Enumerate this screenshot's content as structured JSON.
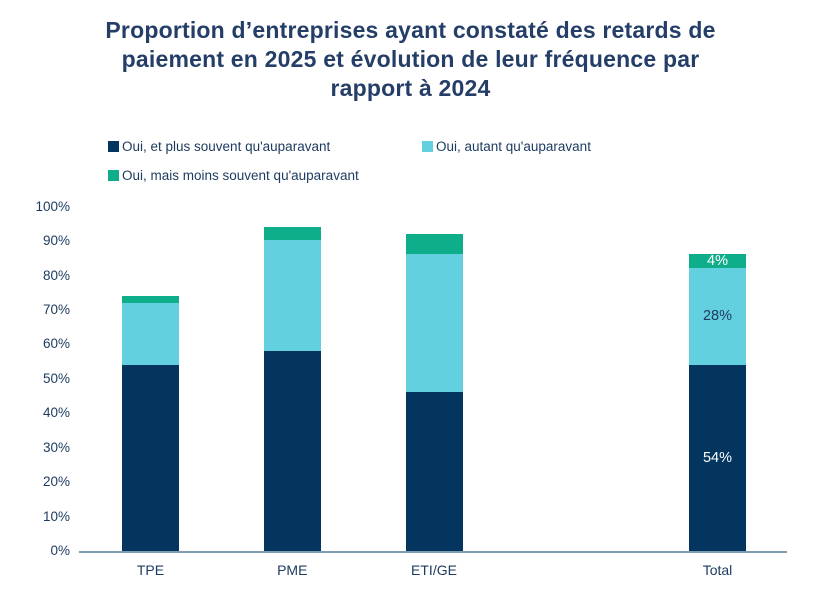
{
  "title": {
    "lines": [
      "Proportion d’entreprises ayant constaté des retards de",
      "paiement en 2025 et évolution de leur fréquence par",
      "rapport à 2024"
    ]
  },
  "colors": {
    "navy": "#04355e",
    "cyan": "#62d0de",
    "green": "#0fae8b",
    "title_text": "#243e68",
    "axis_text": "#1c3a5f",
    "axis_line": "#7f9db1"
  },
  "legend": {
    "items": [
      {
        "label": "Oui, et plus souvent qu'auparavant",
        "color": "#04355e"
      },
      {
        "label": "Oui, autant qu'auparavant",
        "color": "#62d0de"
      },
      {
        "label": "Oui, mais moins souvent qu'auparavant",
        "color": "#0fae8b"
      }
    ]
  },
  "chart_data": {
    "type": "bar",
    "stacked": true,
    "title": "Proportion d’entreprises ayant constaté des retards de paiement en 2025 et évolution de leur fréquence par rapport à 2024",
    "categories": [
      "TPE",
      "PME",
      "ETI/GE",
      "Total"
    ],
    "series": [
      {
        "name": "Oui, et plus souvent qu'auparavant",
        "color": "#04355e",
        "values": [
          54,
          58,
          46,
          54
        ]
      },
      {
        "name": "Oui, autant qu'auparavant",
        "color": "#62d0de",
        "values": [
          18,
          32,
          40,
          28
        ]
      },
      {
        "name": "Oui, mais moins souvent qu'auparavant",
        "color": "#0fae8b",
        "values": [
          2,
          4,
          6,
          4
        ]
      }
    ],
    "totals": [
      74,
      94,
      92,
      86
    ],
    "y_ticks": [
      "100%",
      "90%",
      "80%",
      "70%",
      "60%",
      "50%",
      "40%",
      "30%",
      "20%",
      "10%",
      "0%"
    ],
    "ylim": [
      0,
      100
    ],
    "grid": false,
    "legend_position": "top",
    "x_slots": [
      0,
      1,
      2,
      4
    ],
    "data_labels": [
      {
        "category": "Total",
        "series_index": 0,
        "text": "54%",
        "color": "#ffffff"
      },
      {
        "category": "Total",
        "series_index": 1,
        "text": "28%",
        "color": "#1f3a63"
      },
      {
        "category": "Total",
        "series_index": 2,
        "text": "4%",
        "color": "#ffffff"
      }
    ]
  }
}
